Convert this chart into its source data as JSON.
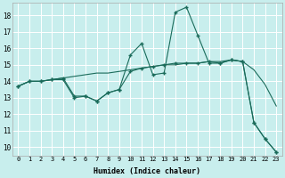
{
  "xlabel": "Humidex (Indice chaleur)",
  "bg_color": "#c8eeed",
  "grid_color": "#ffffff",
  "line_color": "#1a6b5a",
  "xlim": [
    -0.5,
    23.5
  ],
  "ylim": [
    9.5,
    18.75
  ],
  "yticks": [
    10,
    11,
    12,
    13,
    14,
    15,
    16,
    17,
    18
  ],
  "xticks": [
    0,
    1,
    2,
    3,
    4,
    5,
    6,
    7,
    8,
    9,
    10,
    11,
    12,
    13,
    14,
    15,
    16,
    17,
    18,
    19,
    20,
    21,
    22,
    23
  ],
  "series_peak": {
    "x": [
      0,
      1,
      2,
      3,
      4,
      5,
      6,
      7,
      8,
      9,
      10,
      11,
      12,
      13,
      14,
      15,
      16,
      17,
      18,
      19,
      20,
      21,
      22,
      23
    ],
    "y": [
      13.7,
      14.0,
      14.0,
      14.1,
      14.1,
      13.0,
      13.1,
      12.8,
      13.3,
      13.5,
      15.6,
      16.3,
      14.4,
      14.5,
      18.2,
      18.5,
      16.8,
      15.1,
      15.1,
      15.3,
      15.2,
      11.5,
      10.5,
      9.7
    ]
  },
  "series_flat": {
    "x": [
      0,
      1,
      2,
      3,
      4,
      5,
      6,
      7,
      8,
      9,
      10,
      11,
      12,
      13,
      14,
      15,
      16,
      17,
      18,
      19,
      20,
      21,
      22,
      23
    ],
    "y": [
      13.7,
      14.0,
      14.0,
      14.1,
      14.2,
      13.1,
      13.1,
      12.8,
      13.3,
      13.5,
      14.6,
      14.8,
      14.9,
      15.0,
      15.1,
      15.1,
      15.1,
      15.2,
      15.1,
      15.3,
      15.2,
      11.5,
      10.5,
      9.7
    ]
  },
  "series_trend": {
    "x": [
      0,
      1,
      2,
      3,
      4,
      5,
      6,
      7,
      8,
      9,
      10,
      11,
      12,
      13,
      14,
      15,
      16,
      17,
      18,
      19,
      20,
      21,
      22,
      23
    ],
    "y": [
      13.7,
      14.0,
      14.0,
      14.1,
      14.2,
      14.3,
      14.4,
      14.5,
      14.5,
      14.6,
      14.7,
      14.8,
      14.9,
      15.0,
      15.0,
      15.1,
      15.1,
      15.2,
      15.2,
      15.3,
      15.2,
      14.7,
      13.8,
      12.5
    ]
  }
}
